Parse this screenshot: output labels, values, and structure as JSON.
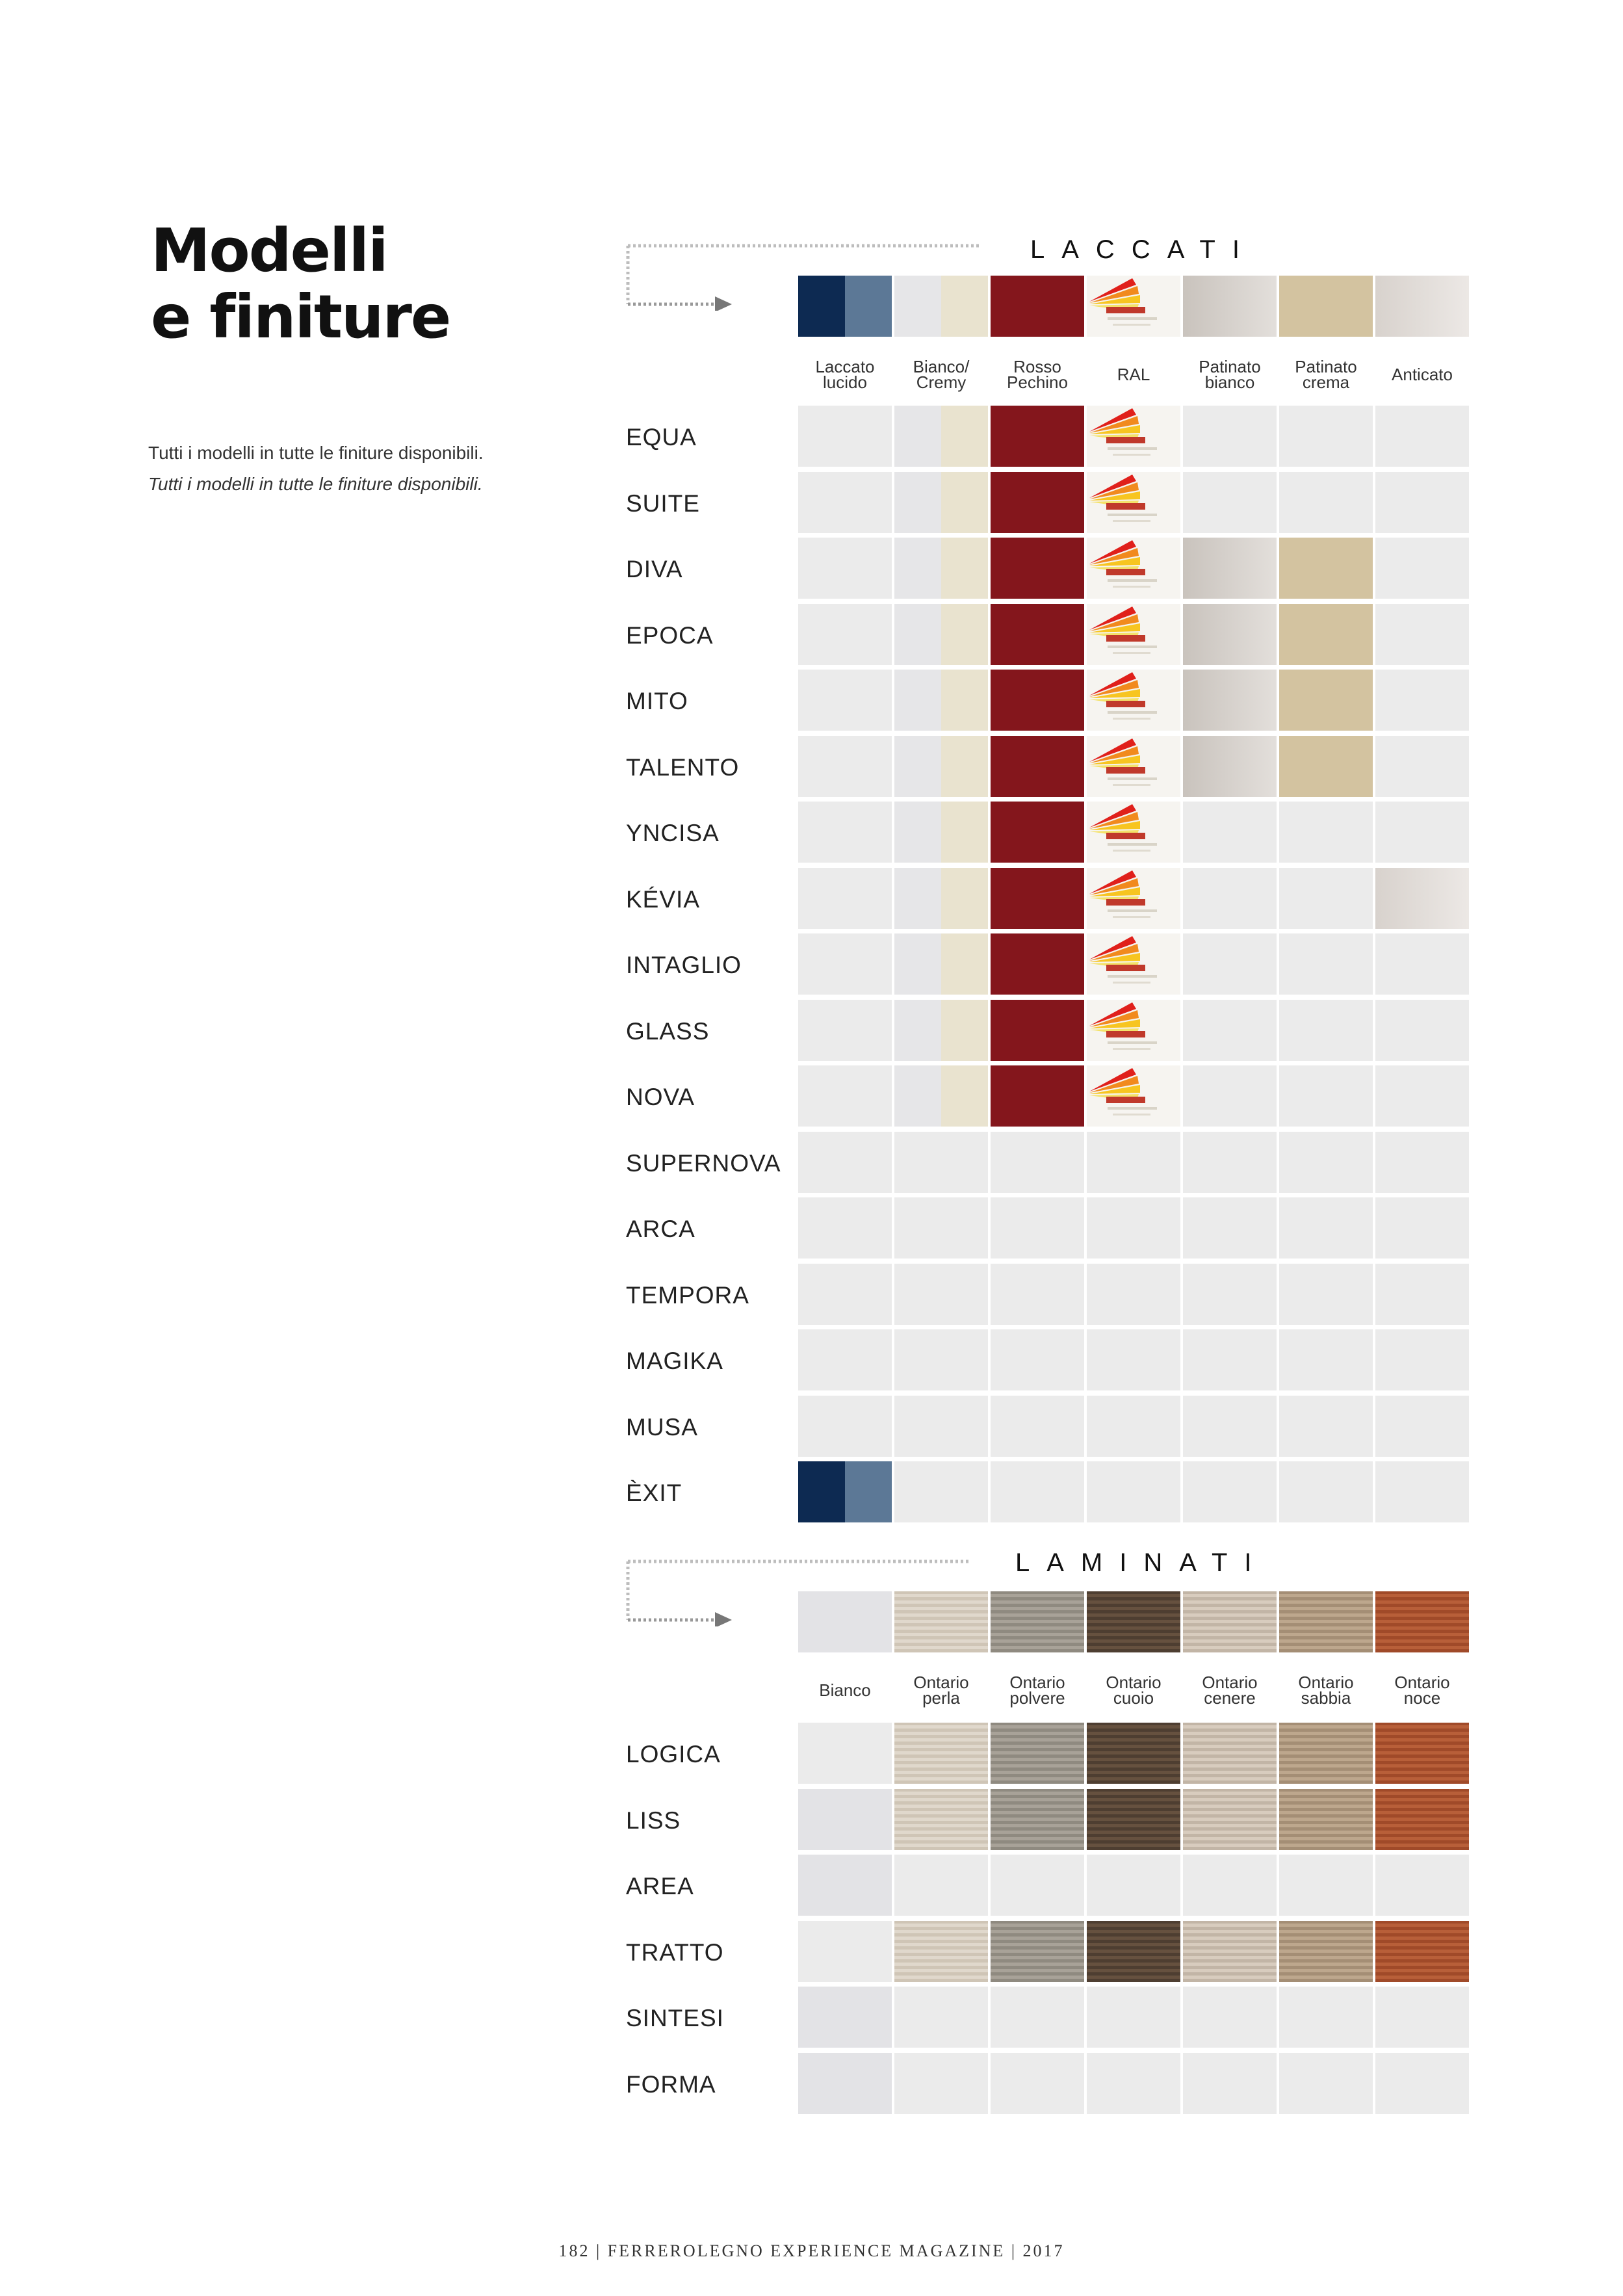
{
  "title": {
    "line1": "Modelli",
    "line2": "e finiture"
  },
  "intro": {
    "text": "Tutti i modelli in tutte le finiture disponibili.",
    "text_italic": "Tutti i modelli in tutte le finiture disponibili."
  },
  "laccati": {
    "title": "LACCATI",
    "columns": [
      "Laccato\nlucido",
      "Bianco/\nCremy",
      "Rosso\nPechino",
      "RAL",
      "Patinato\nbianco",
      "Patinato\ncrema",
      "Anticato"
    ],
    "header_swatches": [
      "blue",
      "cream",
      "red",
      "ral",
      "pbianco",
      "pcrema",
      "antic"
    ],
    "rows": [
      {
        "name": "EQUA",
        "cells": [
          "",
          "cream",
          "red",
          "ral",
          "",
          "",
          ""
        ]
      },
      {
        "name": "SUITE",
        "cells": [
          "",
          "cream",
          "red",
          "ral",
          "",
          "",
          ""
        ]
      },
      {
        "name": "DIVA",
        "cells": [
          "",
          "cream",
          "red",
          "ral",
          "pbianco",
          "pcrema",
          ""
        ]
      },
      {
        "name": "EPOCA",
        "cells": [
          "",
          "cream",
          "red",
          "ral",
          "pbianco",
          "pcrema",
          ""
        ]
      },
      {
        "name": "MITO",
        "cells": [
          "",
          "cream",
          "red",
          "ral",
          "pbianco",
          "pcrema",
          ""
        ]
      },
      {
        "name": "TALENTO",
        "cells": [
          "",
          "cream",
          "red",
          "ral",
          "pbianco",
          "pcrema",
          ""
        ]
      },
      {
        "name": "YNCISA",
        "cells": [
          "",
          "cream",
          "red",
          "ral",
          "",
          "",
          ""
        ]
      },
      {
        "name": "KÉVIA",
        "cells": [
          "",
          "cream",
          "red",
          "ral",
          "",
          "",
          "antic"
        ]
      },
      {
        "name": "INTAGLIO",
        "cells": [
          "",
          "cream",
          "red",
          "ral",
          "",
          "",
          ""
        ]
      },
      {
        "name": "GLASS",
        "cells": [
          "",
          "cream",
          "red",
          "ral",
          "",
          "",
          ""
        ]
      },
      {
        "name": "NOVA",
        "cells": [
          "",
          "cream",
          "red",
          "ral",
          "",
          "",
          ""
        ]
      },
      {
        "name": "SUPERNOVA",
        "cells": [
          "",
          "",
          "",
          "",
          "",
          "",
          ""
        ]
      },
      {
        "name": "ARCA",
        "cells": [
          "",
          "",
          "",
          "",
          "",
          "",
          ""
        ]
      },
      {
        "name": "TEMPORA",
        "cells": [
          "",
          "",
          "",
          "",
          "",
          "",
          ""
        ]
      },
      {
        "name": "MAGIKA",
        "cells": [
          "",
          "",
          "",
          "",
          "",
          "",
          ""
        ]
      },
      {
        "name": "MUSA",
        "cells": [
          "",
          "",
          "",
          "",
          "",
          "",
          ""
        ]
      },
      {
        "name": "ÈXIT",
        "cells": [
          "blue",
          "",
          "",
          "",
          "",
          "",
          ""
        ]
      }
    ]
  },
  "laminati": {
    "title": "LAMINATI",
    "columns": [
      "Bianco",
      "Ontario\nperla",
      "Ontario\npolvere",
      "Ontario\ncuoio",
      "Ontario\ncenere",
      "Ontario\nsabbia",
      "Ontario\nnoce"
    ],
    "header_swatches": [
      "bianco",
      "perla",
      "polvere",
      "cuoio",
      "cenere",
      "sabbia",
      "noce"
    ],
    "rows": [
      {
        "name": "LOGICA",
        "cells": [
          "",
          "perla",
          "polvere",
          "cuoio",
          "cenere",
          "sabbia",
          "noce"
        ]
      },
      {
        "name": "LISS",
        "cells": [
          "bianco",
          "perla",
          "polvere",
          "cuoio",
          "cenere",
          "sabbia",
          "noce"
        ]
      },
      {
        "name": "AREA",
        "cells": [
          "bianco",
          "",
          "",
          "",
          "",
          "",
          ""
        ]
      },
      {
        "name": "TRATTO",
        "cells": [
          "",
          "perla",
          "polvere",
          "cuoio",
          "cenere",
          "sabbia",
          "noce"
        ]
      },
      {
        "name": "SINTESI",
        "cells": [
          "bianco",
          "",
          "",
          "",
          "",
          "",
          ""
        ]
      },
      {
        "name": "FORMA",
        "cells": [
          "bianco",
          "",
          "",
          "",
          "",
          "",
          ""
        ]
      }
    ]
  },
  "footer": {
    "page": "182",
    "magazine": "FERREROLEGNO EXPERIENCE MAGAZINE",
    "year": "2017"
  }
}
